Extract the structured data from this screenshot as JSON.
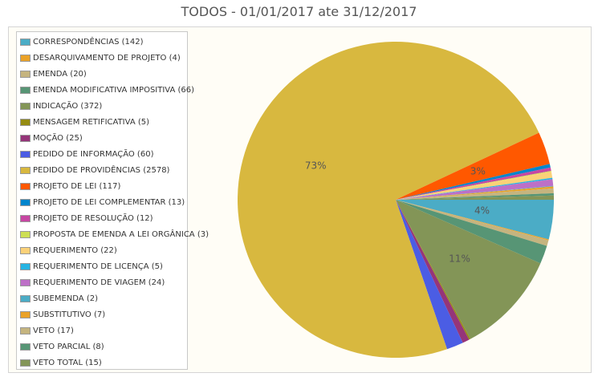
{
  "chart_data": {
    "type": "pie",
    "title": "TODOS - 01/01/2017 ate 31/12/2017",
    "legend_position": "left",
    "slices": [
      {
        "label": "CORRESPONDÊNCIAS (142)",
        "value": 142,
        "color": "#4bacc6"
      },
      {
        "label": "DESARQUIVAMENTO DE PROJETO (4)",
        "value": 4,
        "color": "#eaa228"
      },
      {
        "label": "EMENDA (20)",
        "value": 20,
        "color": "#c5b47f"
      },
      {
        "label": "EMENDA MODIFICATIVA IMPOSITIVA (66)",
        "value": 66,
        "color": "#579575"
      },
      {
        "label": "INDICAÇÃO (372)",
        "value": 372,
        "color": "#839557"
      },
      {
        "label": "MENSAGEM RETIFICATIVA (5)",
        "value": 5,
        "color": "#958c12"
      },
      {
        "label": "MOÇÃO (25)",
        "value": 25,
        "color": "#953579"
      },
      {
        "label": "PEDIDO DE INFORMAÇÃO (60)",
        "value": 60,
        "color": "#4b5de4"
      },
      {
        "label": "PEDIDO DE PROVIDÊNCIAS (2578)",
        "value": 2578,
        "color": "#d8b83f"
      },
      {
        "label": "PROJETO DE LEI (117)",
        "value": 117,
        "color": "#ff5800"
      },
      {
        "label": "PROJETO DE LEI COMPLEMENTAR (13)",
        "value": 13,
        "color": "#0085cc"
      },
      {
        "label": "PROJETO DE RESOLUÇÃO (12)",
        "value": 12,
        "color": "#c747a3"
      },
      {
        "label": "PROPOSTA DE EMENDA A LEI ORGÂNICA (3)",
        "value": 3,
        "color": "#cddf54"
      },
      {
        "label": "REQUERIMENTO (22)",
        "value": 22,
        "color": "#fbd178"
      },
      {
        "label": "REQUERIMENTO DE LICENÇA (5)",
        "value": 5,
        "color": "#26b4e3"
      },
      {
        "label": "REQUERIMENTO DE VIAGEM (24)",
        "value": 24,
        "color": "#bd70c7"
      },
      {
        "label": "SUBEMENDA (2)",
        "value": 2,
        "color": "#4bacc6"
      },
      {
        "label": "SUBSTITUTIVO (7)",
        "value": 7,
        "color": "#eaa228"
      },
      {
        "label": "VETO (17)",
        "value": 17,
        "color": "#c5b47f"
      },
      {
        "label": "VETO PARCIAL (8)",
        "value": 8,
        "color": "#579575"
      },
      {
        "label": "VETO TOTAL (15)",
        "value": 15,
        "color": "#839557"
      }
    ],
    "data_labels": [
      {
        "text": "73%",
        "slice": 8
      },
      {
        "text": "3%",
        "slice": 9
      },
      {
        "text": "4%",
        "slice": 0
      },
      {
        "text": "11%",
        "slice": 4
      }
    ]
  }
}
